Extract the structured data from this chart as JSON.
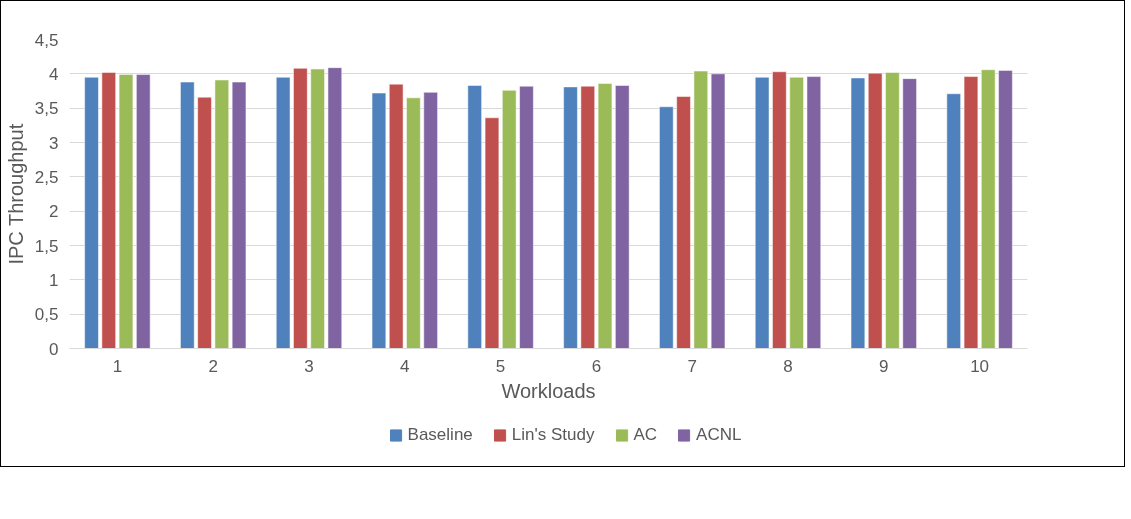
{
  "chart_data": {
    "type": "bar",
    "xlabel": "Workloads",
    "ylabel": "IPC Throughput",
    "categories": [
      "1",
      "2",
      "3",
      "4",
      "5",
      "6",
      "7",
      "8",
      "9",
      "10"
    ],
    "series": [
      {
        "name": "Baseline",
        "color": "#4f81bd",
        "values": [
          3.95,
          3.88,
          3.95,
          3.72,
          3.83,
          3.81,
          3.52,
          3.95,
          3.94,
          3.71
        ]
      },
      {
        "name": "Lin's Study",
        "color": "#c0504d",
        "values": [
          4.02,
          3.66,
          4.08,
          3.85,
          3.36,
          3.82,
          3.67,
          4.03,
          4.01,
          3.96
        ]
      },
      {
        "name": "AC",
        "color": "#9bbb59",
        "values": [
          3.99,
          3.91,
          4.07,
          3.65,
          3.76,
          3.86,
          4.04,
          3.95,
          4.02,
          4.06
        ]
      },
      {
        "name": "ACNL",
        "color": "#8064a2",
        "values": [
          3.99,
          3.88,
          4.09,
          3.73,
          3.82,
          3.83,
          4.0,
          3.96,
          3.93,
          4.05
        ]
      }
    ],
    "ylim": [
      0,
      4.5
    ],
    "yticks": [
      0,
      {
        "value": 0.5,
        "label": "0,5"
      },
      1,
      {
        "value": 1.5,
        "label": "1,5"
      },
      2,
      {
        "value": 2.5,
        "label": "2,5"
      },
      3,
      {
        "value": 3.5,
        "label": "3,5"
      },
      4,
      {
        "value": 4.5,
        "label": "4,5"
      }
    ],
    "grid": "y",
    "legend": "bottom"
  }
}
